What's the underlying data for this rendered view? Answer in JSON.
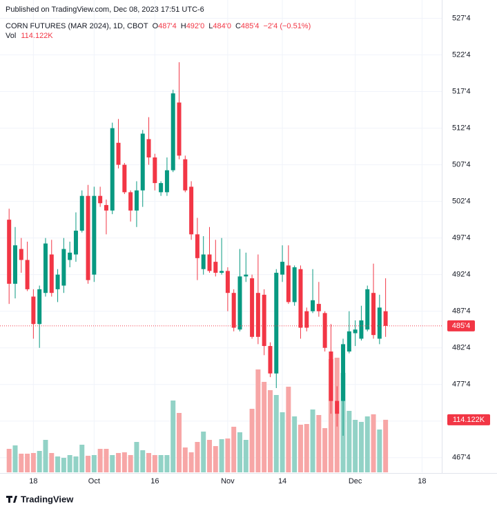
{
  "chart_data": {
    "type": "candlestick",
    "published": "Published on TradingView.com, Dec 08, 2023 17:51 UTC-6",
    "symbol": "CORN FUTURES (MAR 2024), 1D, CBOT",
    "ohlc_legend": [
      {
        "key": "O",
        "value": "487'4"
      },
      {
        "key": "H",
        "value": "492'0"
      },
      {
        "key": "L",
        "value": "484'0"
      },
      {
        "key": "C",
        "value": "485'4"
      }
    ],
    "change": "−2'4 (−0.51%)",
    "volume_legend": "Vol",
    "open": [
      500,
      491.25,
      496,
      494.5,
      489.5,
      485.75,
      490,
      495.25,
      490.5,
      491,
      494.5,
      495.25,
      498.5,
      503.25,
      492.5,
      503.25,
      502,
      501.25,
      510.5,
      507.5,
      503.75,
      501.25,
      504,
      511,
      508.5,
      503.75,
      503.75,
      506.75,
      516,
      508.25,
      504.5,
      498,
      493.25,
      495.25,
      494.25,
      492.75,
      493,
      490,
      485,
      492.25,
      492,
      490,
      489.75,
      482.75,
      479,
      492.5,
      493.75,
      488.75,
      493.25,
      487.5,
      487.5,
      488.5,
      487.25,
      482,
      475.25,
      475.25,
      482,
      484.5,
      483.75,
      485,
      490,
      483.75,
      487.5
    ],
    "high": [
      501.5,
      499,
      497.5,
      497,
      490.5,
      491,
      497.5,
      497.25,
      493.25,
      497.5,
      497,
      501,
      504,
      504.75,
      504.5,
      504.5,
      502.75,
      513.25,
      513.75,
      507.75,
      504,
      505.25,
      512.25,
      514,
      509,
      505.25,
      508.5,
      517.75,
      521.5,
      508.75,
      505.25,
      500.25,
      497.75,
      499,
      497.25,
      497.5,
      493.5,
      490.5,
      496,
      495.5,
      492.5,
      495.25,
      490.5,
      483.25,
      493.25,
      496.5,
      496.5,
      493.75,
      493.75,
      488,
      493.25,
      491.5,
      487.5,
      485.75,
      477.25,
      483.75,
      487.5,
      486.25,
      488.25,
      491,
      494,
      489.75,
      492
    ],
    "low": [
      488.5,
      489.25,
      492.75,
      490.25,
      483.75,
      482.5,
      489.5,
      489.5,
      488.75,
      490,
      493.5,
      494.25,
      498.25,
      491.25,
      491.5,
      501.75,
      498,
      500.75,
      507,
      503.5,
      499.75,
      499,
      501.75,
      507.5,
      504,
      503.25,
      503.25,
      506.5,
      508.25,
      503.75,
      497.25,
      491.75,
      492.5,
      492.75,
      492.25,
      492.5,
      487.5,
      484.75,
      484.75,
      491.5,
      483.75,
      483,
      481.5,
      478.5,
      477,
      491.5,
      488.5,
      488.25,
      483.75,
      484.75,
      487.25,
      486.75,
      482,
      473.5,
      471.75,
      470.5,
      481.75,
      482.75,
      483.5,
      484.75,
      483.75,
      483,
      484
    ],
    "close": [
      491.25,
      496.5,
      494.5,
      490.5,
      485.75,
      490.5,
      496.75,
      490,
      492.5,
      496,
      495.5,
      498.5,
      503.25,
      491.75,
      503.25,
      502.25,
      501.25,
      512.5,
      507.5,
      503.75,
      501.25,
      504,
      511.75,
      508.5,
      505,
      505,
      506.75,
      517.25,
      508.75,
      504,
      498,
      494.75,
      495.25,
      493,
      492.75,
      493,
      490,
      485.25,
      492.25,
      492.5,
      484,
      484,
      482.75,
      479,
      492.75,
      494.25,
      488.75,
      493.5,
      485.25,
      485.25,
      489,
      487.5,
      482.5,
      475.25,
      473.5,
      483,
      484.75,
      485,
      486.25,
      490.5,
      484.25,
      488,
      485.5
    ],
    "volume": [
      51,
      58.5,
      40.5,
      40.5,
      42,
      46.5,
      70.5,
      42,
      34.5,
      31.5,
      37.5,
      34.5,
      60,
      36,
      37.5,
      51,
      51,
      37.5,
      42,
      43.5,
      37.5,
      66,
      48,
      42,
      37.5,
      37.5,
      37.5,
      156,
      129,
      54,
      43.5,
      66,
      88.5,
      70.5,
      57,
      72,
      73.5,
      99,
      87,
      70.5,
      138,
      223.5,
      196.5,
      178.5,
      168,
      130.5,
      186,
      121.5,
      103.5,
      105,
      136.5,
      124.5,
      96,
      246,
      249,
      216,
      133.5,
      114,
      109.5,
      121.5,
      126,
      93,
      114.122
    ],
    "up_color": "#089981",
    "down_color": "#f23645",
    "volume_up_color": "#92d2c6",
    "volume_down_color": "#f7a6a6",
    "ylim": [
      465.5,
      530
    ],
    "yticks": [
      {
        "value": 467.5,
        "label": "467'4"
      },
      {
        "value": 472.5,
        "label": "472'4"
      },
      {
        "value": 477.5,
        "label": "477'4"
      },
      {
        "value": 482.5,
        "label": "482'4"
      },
      {
        "value": 487.5,
        "label": "487'4"
      },
      {
        "value": 492.5,
        "label": "492'4"
      },
      {
        "value": 497.5,
        "label": "497'4"
      },
      {
        "value": 502.5,
        "label": "502'4"
      },
      {
        "value": 507.5,
        "label": "507'4"
      },
      {
        "value": 512.5,
        "label": "512'4"
      },
      {
        "value": 517.5,
        "label": "517'4"
      },
      {
        "value": 522.5,
        "label": "522'4"
      },
      {
        "value": 527.5,
        "label": "527'4"
      }
    ],
    "xlim": [
      -1.5,
      71.25
    ],
    "xticks": [
      {
        "value": 4,
        "label": "18"
      },
      {
        "value": 14,
        "label": "Oct"
      },
      {
        "value": 24,
        "label": "16"
      },
      {
        "value": 36,
        "label": "Nov"
      },
      {
        "value": 45,
        "label": "14"
      },
      {
        "value": 57,
        "label": "Dec"
      },
      {
        "value": 68,
        "label": "18"
      }
    ],
    "volume_ylim": [
      0,
      300
    ],
    "last_price": {
      "value": 485.5,
      "label": "485'4"
    },
    "last_volume": {
      "value": 114.122,
      "label": "114.122K"
    },
    "grid": true,
    "brand": "TradingView"
  }
}
